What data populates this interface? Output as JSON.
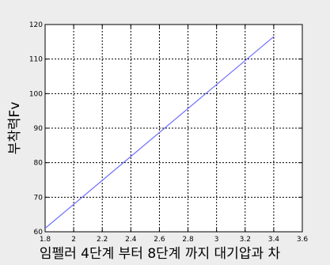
{
  "chart_data": {
    "type": "line",
    "title": "",
    "xlabel": "임펠러 4단계 부터 8단계 까지 대기압과 차",
    "ylabel": "부착력Fv",
    "xlim": [
      1.8,
      3.6
    ],
    "ylim": [
      60,
      120
    ],
    "xticks": [
      1.8,
      2.0,
      2.2,
      2.4,
      2.6,
      2.8,
      3.0,
      3.2,
      3.4,
      3.6
    ],
    "xtick_labels": [
      "1.8",
      "2",
      "2.2",
      "2.4",
      "2.6",
      "2.8",
      "3",
      "3.2",
      "3.4",
      "3.6"
    ],
    "yticks": [
      60,
      70,
      80,
      90,
      100,
      110,
      120
    ],
    "ytick_labels": [
      "60",
      "70",
      "80",
      "90",
      "100",
      "110",
      "120"
    ],
    "grid": true,
    "series": [
      {
        "x": [
          1.8,
          3.4
        ],
        "y": [
          61,
          116.5
        ],
        "color": "#6f6fff"
      }
    ]
  }
}
